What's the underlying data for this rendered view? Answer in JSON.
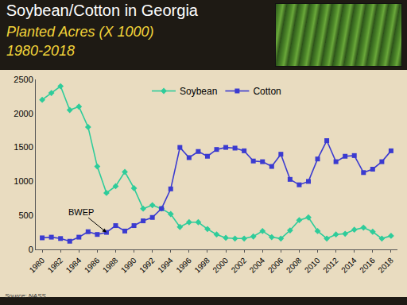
{
  "chart_data": {
    "type": "line",
    "title": "Soybean/Cotton in Georgia",
    "subtitle": [
      "Planted Acres (X 1000)",
      "1980-2018"
    ],
    "source": "Source: NASS",
    "x": [
      1980,
      1981,
      1982,
      1983,
      1984,
      1985,
      1986,
      1987,
      1988,
      1989,
      1990,
      1991,
      1992,
      1993,
      1994,
      1995,
      1996,
      1997,
      1998,
      1999,
      2000,
      2001,
      2002,
      2003,
      2004,
      2005,
      2006,
      2007,
      2008,
      2009,
      2010,
      2011,
      2012,
      2013,
      2014,
      2015,
      2016,
      2017,
      2018
    ],
    "series": [
      {
        "name": "Soybean",
        "color": "#2ecc9a",
        "marker": "diamond",
        "values": [
          2200,
          2300,
          2400,
          2050,
          2100,
          1800,
          1220,
          830,
          930,
          1140,
          900,
          600,
          650,
          600,
          520,
          330,
          400,
          400,
          300,
          220,
          170,
          160,
          160,
          190,
          270,
          180,
          160,
          280,
          430,
          470,
          270,
          160,
          220,
          230,
          290,
          320,
          260,
          160,
          200
        ]
      },
      {
        "name": "Cotton",
        "color": "#3b3bd0",
        "marker": "square",
        "values": [
          170,
          180,
          160,
          120,
          180,
          260,
          220,
          250,
          350,
          270,
          350,
          420,
          470,
          600,
          890,
          1500,
          1350,
          1440,
          1370,
          1470,
          1500,
          1490,
          1450,
          1300,
          1290,
          1220,
          1400,
          1030,
          950,
          1000,
          1330,
          1600,
          1290,
          1370,
          1380,
          1130,
          1180,
          1290,
          1450
        ]
      }
    ],
    "annotations": [
      {
        "text": "BWEP",
        "x": 1987,
        "y": 250
      }
    ],
    "xlim": [
      1979.3,
      2018.7
    ],
    "xticks": [
      1980,
      1982,
      1984,
      1986,
      1988,
      1990,
      1992,
      1994,
      1996,
      1998,
      2000,
      2002,
      2004,
      2006,
      2008,
      2010,
      2012,
      2014,
      2016,
      2018
    ],
    "ylim": [
      0,
      2500
    ],
    "yticks": [
      0,
      500,
      1000,
      1500,
      2000,
      2500
    ],
    "grid": false,
    "legend": "top"
  }
}
